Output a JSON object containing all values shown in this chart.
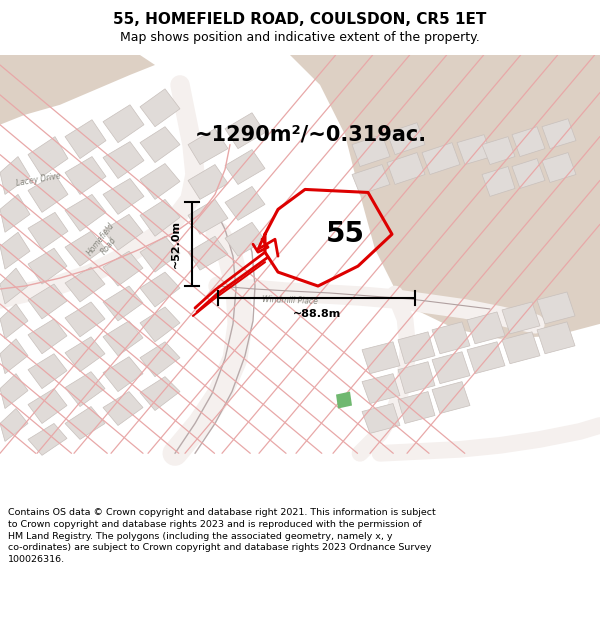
{
  "title": "55, HOMEFIELD ROAD, COULSDON, CR5 1ET",
  "subtitle": "Map shows position and indicative extent of the property.",
  "footer": "Contains OS data © Crown copyright and database right 2021. This information is subject to Crown copyright and database rights 2023 and is reproduced with the permission of HM Land Registry. The polygons (including the associated geometry, namely x, y co-ordinates) are subject to Crown copyright and database rights 2023 Ordnance Survey 100026316.",
  "area_label": "~1290m²/~0.319ac.",
  "width_label": "~88.8m",
  "height_label": "~52.0m",
  "property_number": "55",
  "map_bg": "#f7f3f0",
  "open_land_color": "#ddd0c4",
  "block_fill": "#e0dbd8",
  "block_edge": "#c8c0bc",
  "street_line_color": "#e8a8a8",
  "street_outline_color": "#d49090",
  "plot_color": "#dd0000",
  "dim_color": "#000000",
  "green_color": "#70b870",
  "road_fill": "#f5f0ee",
  "title_fontsize": 11,
  "subtitle_fontsize": 9,
  "footer_fontsize": 6.8,
  "area_fontsize": 15,
  "number_fontsize": 20,
  "dim_fontsize": 8,
  "road_label_fontsize": 5.5
}
